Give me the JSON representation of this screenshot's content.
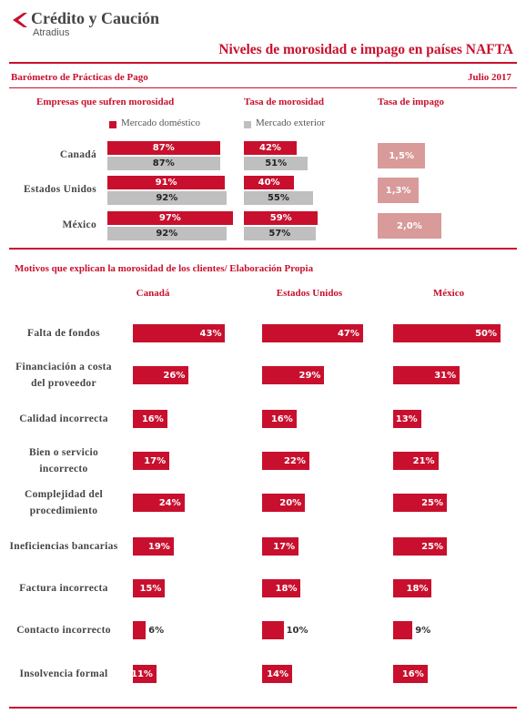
{
  "header": {
    "brand": "Crédito y Caución",
    "sub": "Atradius",
    "title": "Niveles de morosidad e impago en países NAFTA"
  },
  "section1": {
    "title": "Barómetro de Prácticas de Pago",
    "date": "Julio 2017"
  },
  "chart_data": [
    {
      "type": "bar",
      "title": "Empresas que sufren morosidad",
      "categories": [
        "Canadá",
        "Estados Unidos",
        "México"
      ],
      "series": [
        {
          "name": "Mercado doméstico",
          "color": "#c8102e",
          "values": [
            87,
            91,
            97
          ],
          "value_labels": [
            "87%",
            "91%",
            "97%"
          ]
        },
        {
          "name": "Mercado exterior",
          "color": "#bfbfbf",
          "values": [
            87,
            92,
            92
          ],
          "value_labels": [
            "87%",
            "92%",
            "92%"
          ]
        }
      ],
      "xlim": [
        0,
        100
      ]
    },
    {
      "type": "bar",
      "title": "Tasa de morosidad",
      "series": [
        {
          "color": "#c8102e",
          "values": [
            42,
            40,
            59
          ],
          "value_labels": [
            "42%",
            "40%",
            "59%"
          ]
        },
        {
          "color": "#bfbfbf",
          "values": [
            51,
            55,
            57
          ],
          "value_labels": [
            "51%",
            "55%",
            "57%"
          ]
        }
      ],
      "xlim": [
        0,
        100
      ]
    },
    {
      "type": "bar",
      "title": "Tasa de impago",
      "color": "#d99a9a",
      "values": [
        1.5,
        1.3,
        2.0
      ],
      "value_labels": [
        "1,5%",
        "1,3%",
        "2,0%"
      ],
      "xlim": [
        0,
        4.3
      ]
    },
    {
      "type": "bar",
      "title": "Motivos que explican la morosidad de los clientes/ Elaboración Propia",
      "categories": [
        "Falta de fondos",
        "Financiación a costa del proveedor",
        "Calidad incorrecta",
        "Bien o servicio incorrecto",
        "Complejidad del procedimiento",
        "Ineficiencias bancarias",
        "Factura incorrecta",
        "Contacto incorrecto",
        "Insolvencia formal"
      ],
      "series": [
        {
          "name": "Canadá",
          "color": "#c8102e",
          "values": [
            43,
            26,
            16,
            17,
            24,
            19,
            15,
            6,
            11
          ],
          "value_labels": [
            "43%",
            "26%",
            "16%",
            "17%",
            "24%",
            "19%",
            "15%",
            "6%",
            "11%"
          ]
        },
        {
          "name": "Estados Unidos",
          "color": "#c8102e",
          "values": [
            47,
            29,
            16,
            22,
            20,
            17,
            18,
            10,
            14
          ],
          "value_labels": [
            "47%",
            "29%",
            "16%",
            "22%",
            "20%",
            "17%",
            "18%",
            "10%",
            "14%"
          ]
        },
        {
          "name": "México",
          "color": "#c8102e",
          "values": [
            50,
            31,
            13,
            21,
            25,
            25,
            18,
            9,
            16
          ],
          "value_labels": [
            "50%",
            "31%",
            "13%",
            "21%",
            "25%",
            "25%",
            "18%",
            "9%",
            "16%"
          ]
        }
      ],
      "xlim": [
        0,
        50
      ]
    }
  ]
}
